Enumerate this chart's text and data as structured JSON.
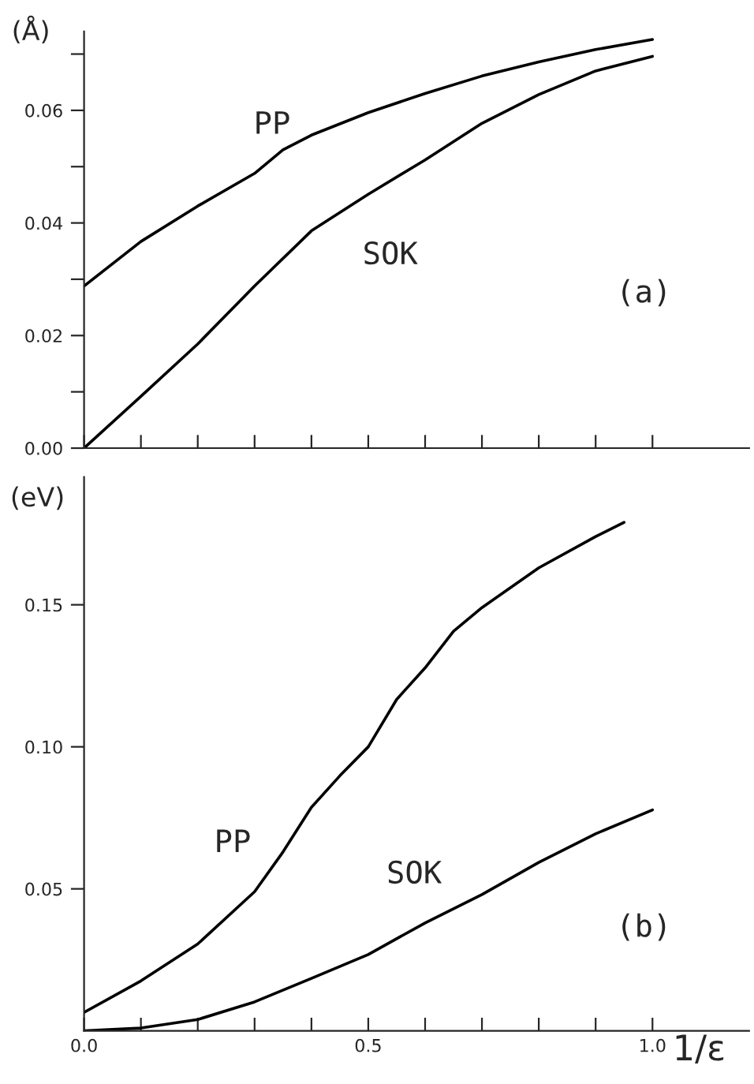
{
  "chart_data": [
    {
      "type": "line",
      "ylabel": "(Å)",
      "annotations": [
        "(a)"
      ],
      "tick_labels": "y",
      "grid": false,
      "legend": false,
      "xlim": [
        0,
        1.17
      ],
      "ylim": [
        0,
        0.074
      ],
      "xticks": [
        {
          "value": 0.0,
          "label": null
        },
        {
          "value": 0.1,
          "label": null
        },
        {
          "value": 0.2,
          "label": null
        },
        {
          "value": 0.3,
          "label": null
        },
        {
          "value": 0.4,
          "label": null
        },
        {
          "value": 0.5,
          "label": null
        },
        {
          "value": 0.6,
          "label": null
        },
        {
          "value": 0.7,
          "label": null
        },
        {
          "value": 0.8,
          "label": null
        },
        {
          "value": 0.9,
          "label": null
        },
        {
          "value": 1.0,
          "label": null
        }
      ],
      "yticks": [
        {
          "value": 0,
          "label": "0.00"
        },
        {
          "value": 0.01,
          "label": null
        },
        {
          "value": 0.02,
          "label": "0.02"
        },
        {
          "value": 0.03,
          "label": null
        },
        {
          "value": 0.04,
          "label": "0.04"
        },
        {
          "value": 0.05,
          "label": null
        },
        {
          "value": 0.06,
          "label": "0.06"
        },
        {
          "value": 0.07,
          "label": null
        }
      ],
      "series": [
        {
          "name": "PP",
          "color": "#000000",
          "x": [
            0,
            0.1,
            0.2,
            0.3,
            0.35,
            0.4,
            0.5,
            0.6,
            0.7,
            0.8,
            0.9,
            1.0
          ],
          "values": [
            0.0288,
            0.0367,
            0.043,
            0.0488,
            0.053,
            0.0556,
            0.0596,
            0.063,
            0.0661,
            0.0686,
            0.0708,
            0.0726
          ]
        },
        {
          "name": "SOK",
          "color": "#000000",
          "x": [
            0,
            0.1,
            0.2,
            0.3,
            0.4,
            0.5,
            0.6,
            0.7,
            0.8,
            0.9,
            1.0
          ],
          "values": [
            0,
            0.0092,
            0.0185,
            0.0288,
            0.0386,
            0.0451,
            0.0512,
            0.0577,
            0.0628,
            0.067,
            0.0696
          ]
        }
      ]
    },
    {
      "type": "line",
      "ylabel": "(eV)",
      "xlabel": "1/ε",
      "annotations": [
        "(b)"
      ],
      "grid": false,
      "legend": false,
      "xlim": [
        0,
        1.17
      ],
      "ylim": [
        0,
        0.195
      ],
      "xticks": [
        {
          "value": 0,
          "label": "0.0"
        },
        {
          "value": 0.1,
          "label": null
        },
        {
          "value": 0.2,
          "label": null
        },
        {
          "value": 0.3,
          "label": null
        },
        {
          "value": 0.4,
          "label": null
        },
        0.5,
        {
          "value": 0.6,
          "label": null
        },
        {
          "value": 0.7,
          "label": null
        },
        {
          "value": 0.8,
          "label": null
        },
        {
          "value": 0.9,
          "label": null
        },
        {
          "value": 1,
          "label": "1.0"
        }
      ],
      "yticks": [
        {
          "value": 0.05,
          "label": "0.05"
        },
        {
          "value": 0.1,
          "label": "0.10"
        },
        {
          "value": 0.15,
          "label": "0.15"
        }
      ],
      "series": [
        {
          "name": "PP",
          "color": "#000000",
          "x": [
            0,
            0.1,
            0.2,
            0.3,
            0.35,
            0.4,
            0.45,
            0.5,
            0.55,
            0.6,
            0.65,
            0.7,
            0.8,
            0.9,
            0.95
          ],
          "values": [
            0.0065,
            0.0176,
            0.0306,
            0.049,
            0.063,
            0.0787,
            0.0898,
            0.1,
            0.1167,
            0.1278,
            0.1407,
            0.149,
            0.163,
            0.174,
            0.179
          ]
        },
        {
          "name": "SOK",
          "color": "#000000",
          "x": [
            0,
            0.1,
            0.2,
            0.3,
            0.4,
            0.5,
            0.6,
            0.7,
            0.8,
            0.9,
            1.0
          ],
          "values": [
            0,
            0.001,
            0.004,
            0.0102,
            0.0185,
            0.0269,
            0.038,
            0.048,
            0.0593,
            0.0694,
            0.0778
          ]
        }
      ]
    }
  ]
}
